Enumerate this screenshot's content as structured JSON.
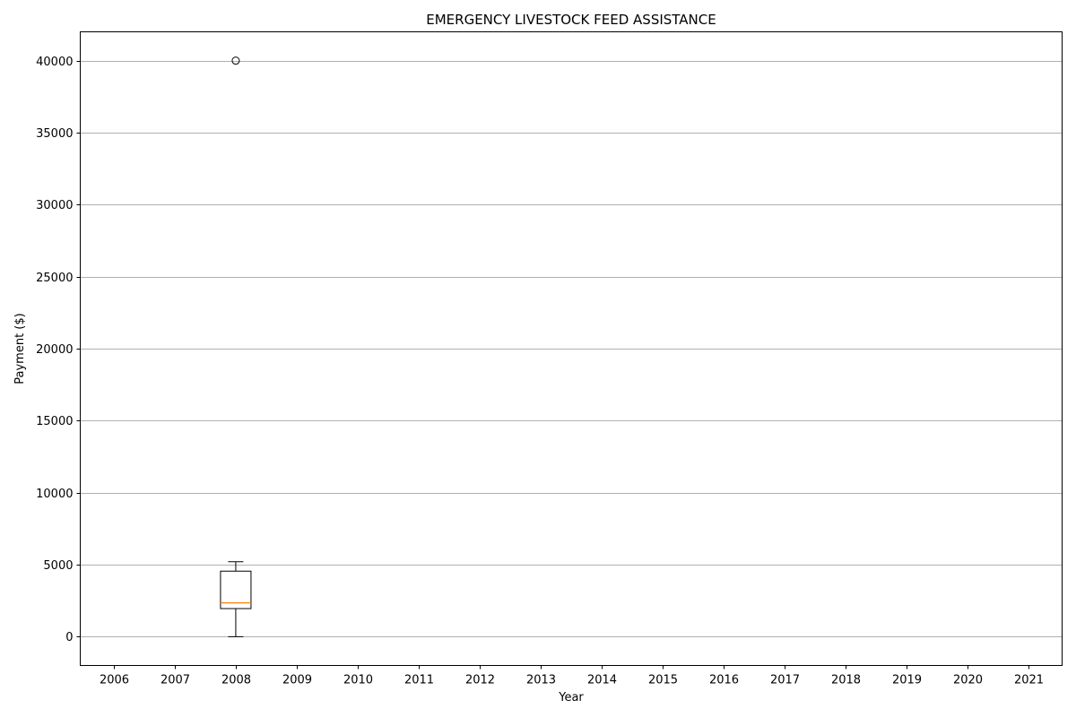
{
  "chart_data": {
    "type": "box",
    "title": "EMERGENCY LIVESTOCK FEED ASSISTANCE",
    "xlabel": "Year",
    "ylabel": "Payment ($)",
    "categories": [
      "2006",
      "2007",
      "2008",
      "2009",
      "2010",
      "2011",
      "2012",
      "2013",
      "2014",
      "2015",
      "2016",
      "2017",
      "2018",
      "2019",
      "2020",
      "2021"
    ],
    "ylim": [
      -2000,
      42000
    ],
    "yticks": [
      0,
      5000,
      10000,
      15000,
      20000,
      25000,
      30000,
      35000,
      40000
    ],
    "grid": "y",
    "boxes": [
      {
        "category": "2008",
        "whisker_low": 0,
        "q1": 1950,
        "median": 2350,
        "q3": 4550,
        "whisker_high": 5200,
        "outliers": [
          40000
        ]
      }
    ]
  },
  "colors": {
    "box": "#000000",
    "median": "#ff7f0e",
    "grid": "#b0b0b0",
    "axis": "#000000"
  }
}
